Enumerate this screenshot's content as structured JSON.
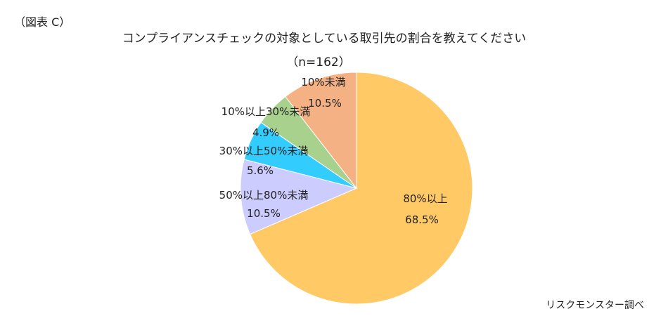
{
  "figure_label": "（図表 C）",
  "source_note": "リスクモンスター調べ",
  "chart_data": {
    "type": "pie",
    "title": "コンプライアンスチェックの対象としている取引先の割合を教えてください",
    "subtitle": "（n=162）",
    "slices": [
      {
        "name": "80%以上",
        "value": 68.5,
        "value_label": "68.5%",
        "color": "#FFC966"
      },
      {
        "name": "50%以上80%未満",
        "value": 10.5,
        "value_label": "10.5%",
        "color": "#CCCCFF"
      },
      {
        "name": "30%以上50%未満",
        "value": 5.6,
        "value_label": "5.6%",
        "color": "#33CCFF"
      },
      {
        "name": "10%以上30%未満",
        "value": 4.9,
        "value_label": "4.9%",
        "color": "#A9D18E"
      },
      {
        "name": "10%未満",
        "value": 10.5,
        "value_label": "10.5%",
        "color": "#F4B183"
      }
    ]
  }
}
